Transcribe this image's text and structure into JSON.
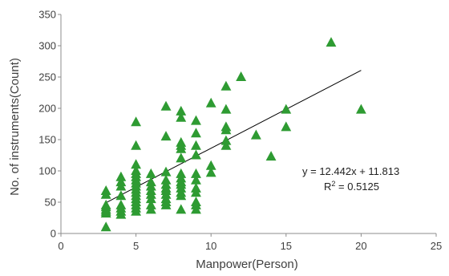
{
  "chart_data": {
    "type": "scatter",
    "title": "",
    "xlabel": "Manpower(Person)",
    "ylabel": "No. of instruments(Count)",
    "xlim": [
      0,
      25
    ],
    "ylim": [
      0,
      350
    ],
    "xticks": [
      "0",
      "5",
      "10",
      "15",
      "20",
      "25"
    ],
    "yticks": [
      "0",
      "50",
      "100",
      "150",
      "200",
      "250",
      "300",
      "350"
    ],
    "grid": false,
    "legend": "none",
    "marker": "triangle",
    "marker_color": "#2e9b32",
    "trendline": {
      "slope": 12.442,
      "intercept": 11.813,
      "x_range": [
        3,
        20
      ],
      "color": "#000000",
      "equation": "y = 12.442x + 11.813",
      "r2_label": "R",
      "r2_value": " = 0.5125"
    },
    "points": [
      {
        "x": 3,
        "y": 10
      },
      {
        "x": 3,
        "y": 32
      },
      {
        "x": 3,
        "y": 35
      },
      {
        "x": 3,
        "y": 38
      },
      {
        "x": 3,
        "y": 42
      },
      {
        "x": 3,
        "y": 45
      },
      {
        "x": 3,
        "y": 62
      },
      {
        "x": 3,
        "y": 68
      },
      {
        "x": 4,
        "y": 30
      },
      {
        "x": 4,
        "y": 35
      },
      {
        "x": 4,
        "y": 40
      },
      {
        "x": 4,
        "y": 45
      },
      {
        "x": 4,
        "y": 60
      },
      {
        "x": 4,
        "y": 75
      },
      {
        "x": 4,
        "y": 82
      },
      {
        "x": 4,
        "y": 90
      },
      {
        "x": 5,
        "y": 35
      },
      {
        "x": 5,
        "y": 40
      },
      {
        "x": 5,
        "y": 45
      },
      {
        "x": 5,
        "y": 50
      },
      {
        "x": 5,
        "y": 55
      },
      {
        "x": 5,
        "y": 60
      },
      {
        "x": 5,
        "y": 65
      },
      {
        "x": 5,
        "y": 70
      },
      {
        "x": 5,
        "y": 75
      },
      {
        "x": 5,
        "y": 80
      },
      {
        "x": 5,
        "y": 85
      },
      {
        "x": 5,
        "y": 90
      },
      {
        "x": 5,
        "y": 95
      },
      {
        "x": 5,
        "y": 100
      },
      {
        "x": 5,
        "y": 110
      },
      {
        "x": 5,
        "y": 140
      },
      {
        "x": 5,
        "y": 178
      },
      {
        "x": 6,
        "y": 38
      },
      {
        "x": 6,
        "y": 45
      },
      {
        "x": 6,
        "y": 55
      },
      {
        "x": 6,
        "y": 62
      },
      {
        "x": 6,
        "y": 68
      },
      {
        "x": 6,
        "y": 75
      },
      {
        "x": 6,
        "y": 82
      },
      {
        "x": 6,
        "y": 95
      },
      {
        "x": 7,
        "y": 45
      },
      {
        "x": 7,
        "y": 50
      },
      {
        "x": 7,
        "y": 55
      },
      {
        "x": 7,
        "y": 62
      },
      {
        "x": 7,
        "y": 68
      },
      {
        "x": 7,
        "y": 72
      },
      {
        "x": 7,
        "y": 78
      },
      {
        "x": 7,
        "y": 85
      },
      {
        "x": 7,
        "y": 98
      },
      {
        "x": 7,
        "y": 155
      },
      {
        "x": 7,
        "y": 203
      },
      {
        "x": 8,
        "y": 38
      },
      {
        "x": 8,
        "y": 60
      },
      {
        "x": 8,
        "y": 65
      },
      {
        "x": 8,
        "y": 72
      },
      {
        "x": 8,
        "y": 78
      },
      {
        "x": 8,
        "y": 82
      },
      {
        "x": 8,
        "y": 88
      },
      {
        "x": 8,
        "y": 95
      },
      {
        "x": 8,
        "y": 120
      },
      {
        "x": 8,
        "y": 135
      },
      {
        "x": 8,
        "y": 140
      },
      {
        "x": 8,
        "y": 145
      },
      {
        "x": 8,
        "y": 185
      },
      {
        "x": 8,
        "y": 195
      },
      {
        "x": 9,
        "y": 38
      },
      {
        "x": 9,
        "y": 45
      },
      {
        "x": 9,
        "y": 50
      },
      {
        "x": 9,
        "y": 65
      },
      {
        "x": 9,
        "y": 72
      },
      {
        "x": 9,
        "y": 85
      },
      {
        "x": 9,
        "y": 95
      },
      {
        "x": 9,
        "y": 125
      },
      {
        "x": 9,
        "y": 140
      },
      {
        "x": 9,
        "y": 160
      },
      {
        "x": 9,
        "y": 180
      },
      {
        "x": 10,
        "y": 97
      },
      {
        "x": 10,
        "y": 108
      },
      {
        "x": 10,
        "y": 208
      },
      {
        "x": 11,
        "y": 140
      },
      {
        "x": 11,
        "y": 148
      },
      {
        "x": 11,
        "y": 165
      },
      {
        "x": 11,
        "y": 170
      },
      {
        "x": 11,
        "y": 198
      },
      {
        "x": 11,
        "y": 235
      },
      {
        "x": 12,
        "y": 250
      },
      {
        "x": 13,
        "y": 157
      },
      {
        "x": 14,
        "y": 123
      },
      {
        "x": 15,
        "y": 170
      },
      {
        "x": 15,
        "y": 198
      },
      {
        "x": 18,
        "y": 305
      },
      {
        "x": 20,
        "y": 198
      }
    ]
  }
}
